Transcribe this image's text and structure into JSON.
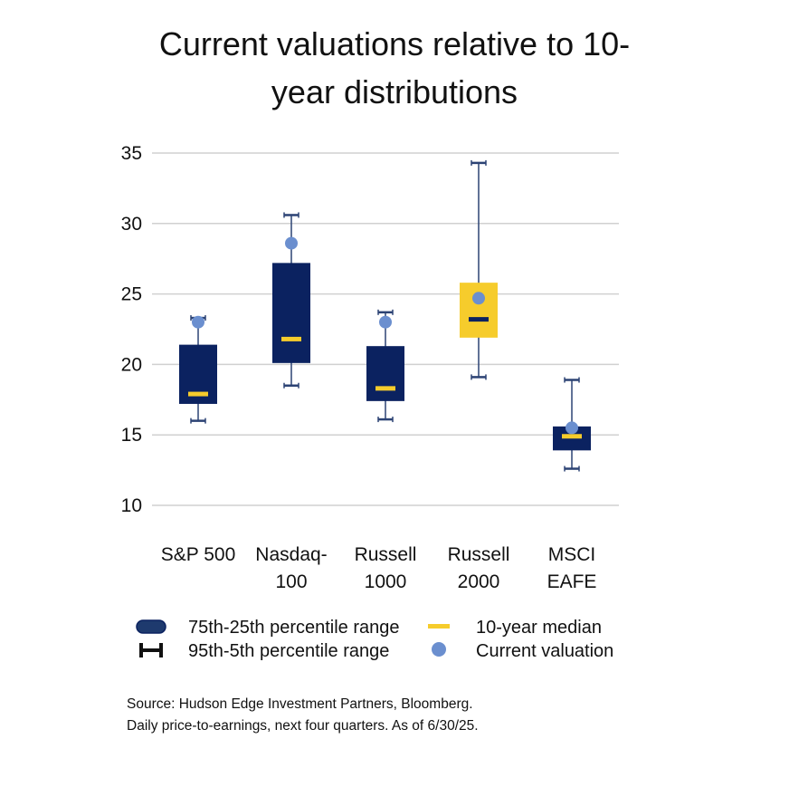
{
  "title_lines": [
    "Current valuations relative to 10-",
    "year distributions"
  ],
  "chart_data": {
    "type": "box",
    "title": "Current valuations relative to 10-year distributions",
    "xlabel": "",
    "ylabel": "",
    "ylim": [
      10,
      35
    ],
    "yticks": [
      10,
      15,
      20,
      25,
      30,
      35
    ],
    "grid": true,
    "categories": [
      {
        "label_lines": [
          "S&P 500"
        ],
        "p5": 16.0,
        "p25": 17.2,
        "median": 17.9,
        "p75": 21.4,
        "p95": 23.3,
        "current": 23.0,
        "box_color": "#0b2260",
        "median_color": "#f6cc2c"
      },
      {
        "label_lines": [
          "Nasdaq-",
          "100"
        ],
        "p5": 18.5,
        "p25": 20.1,
        "median": 21.8,
        "p75": 27.2,
        "p95": 30.6,
        "current": 28.6,
        "box_color": "#0b2260",
        "median_color": "#f6cc2c"
      },
      {
        "label_lines": [
          "Russell",
          "1000"
        ],
        "p5": 16.1,
        "p25": 17.4,
        "median": 18.3,
        "p75": 21.3,
        "p95": 23.7,
        "current": 23.0,
        "box_color": "#0b2260",
        "median_color": "#f6cc2c"
      },
      {
        "label_lines": [
          "Russell",
          "2000"
        ],
        "p5": 19.1,
        "p25": 21.9,
        "median": 23.2,
        "p75": 25.8,
        "p95": 34.3,
        "current": 24.7,
        "box_color": "#f6cc2c",
        "median_color": "#0b2260"
      },
      {
        "label_lines": [
          "MSCI",
          "EAFE"
        ],
        "p5": 12.6,
        "p25": 13.9,
        "median": 14.9,
        "p75": 15.6,
        "p95": 18.9,
        "current": 15.5,
        "box_color": "#0b2260",
        "median_color": "#f6cc2c"
      }
    ],
    "legend": {
      "placement": "bottom",
      "items": [
        {
          "label": "75th-25th percentile range",
          "icon": "box-swatch-icon"
        },
        {
          "label": "10-year median",
          "icon": "median-dash-icon"
        },
        {
          "label": "95th-5th percentile range",
          "icon": "whisker-icon"
        },
        {
          "label": "Current valuation",
          "icon": "current-dot-icon"
        }
      ]
    },
    "colors": {
      "navy": "#0b2260",
      "yellow": "#f6cc2c",
      "dot": "#6b8fcf",
      "whisker": "#2c4374",
      "grid": "#d0d0d0"
    }
  },
  "source_lines": [
    "Source: Hudson Edge Investment Partners, Bloomberg.",
    "Daily price-to-earnings, next four quarters. As of 6/30/25."
  ]
}
